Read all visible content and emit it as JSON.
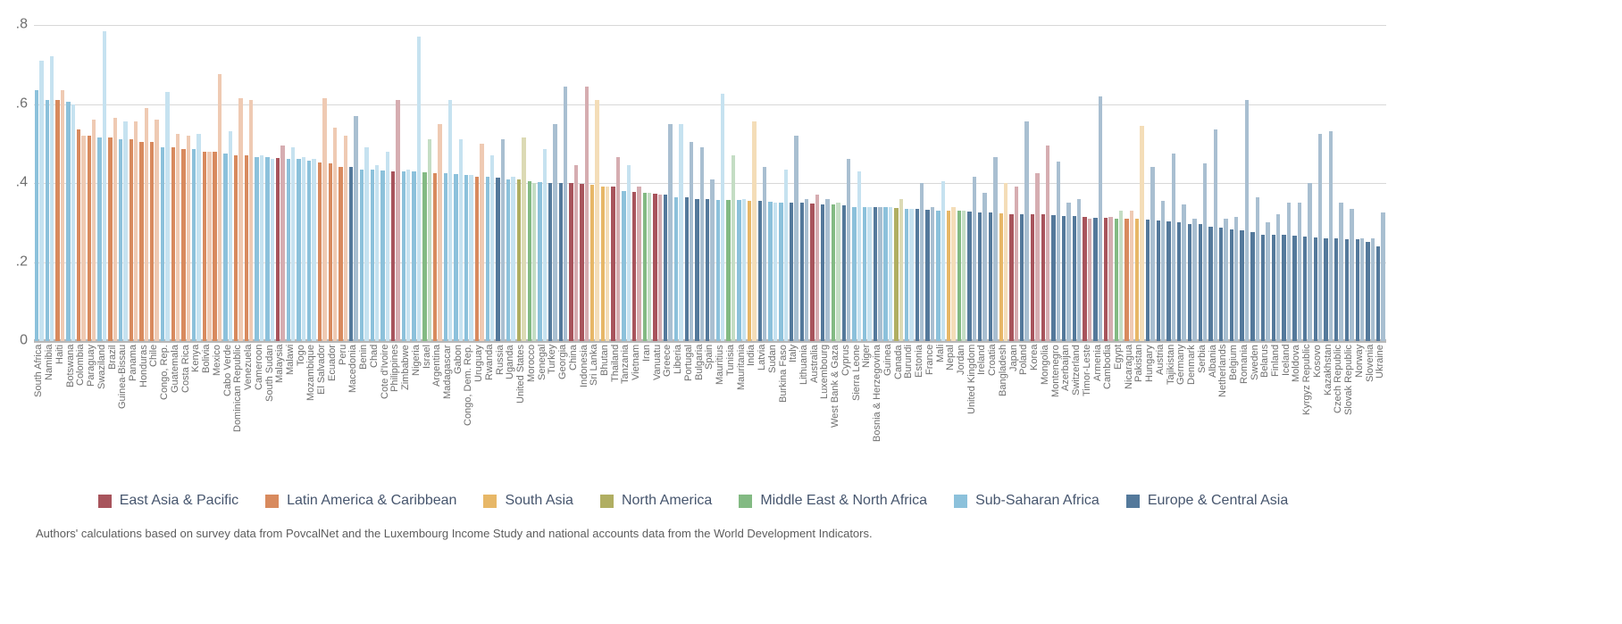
{
  "y_axis": {
    "ticks": [
      ".8",
      ".6",
      ".4",
      ".2",
      "0"
    ]
  },
  "caption": "Authors' calculations based on survey data from PovcalNet and the Luxembourg Income Study and national accounts data from the World Development Indicators.",
  "chart_data": {
    "type": "bar",
    "title": "",
    "xlabel": "",
    "ylabel": "",
    "ylim": [
      0,
      0.8
    ],
    "ytick_values": [
      0,
      0.2,
      0.4,
      0.6,
      0.8
    ],
    "grid": true,
    "legend_position": "bottom",
    "note": "Two bars per country: solid bar = survey-based estimate, light bar = national-accounts-based estimate, colored by world region.",
    "regions": [
      {
        "key": "EAP",
        "label": "East Asia & Pacific",
        "color": "#a8545c",
        "light": "#d6adb1"
      },
      {
        "key": "LAC",
        "label": "Latin America & Caribbean",
        "color": "#d88a5e",
        "light": "#efcab3"
      },
      {
        "key": "SAS",
        "label": "South Asia",
        "color": "#e7b767",
        "light": "#f4ddb8"
      },
      {
        "key": "NAM",
        "label": "North America",
        "color": "#b0ae62",
        "light": "#dcdab5"
      },
      {
        "key": "MNA",
        "label": "Middle East & North Africa",
        "color": "#83ba83",
        "light": "#c4ddc4"
      },
      {
        "key": "SSA",
        "label": "Sub-Saharan Africa",
        "color": "#8cc1db",
        "light": "#c6e2f0"
      },
      {
        "key": "ECA",
        "label": "Europe & Central Asia",
        "color": "#54799b",
        "light": "#a9bfd1"
      }
    ],
    "countries": [
      {
        "name": "South Africa",
        "region": "SSA",
        "survey": 0.635,
        "accounts": 0.71
      },
      {
        "name": "Namibia",
        "region": "SSA",
        "survey": 0.61,
        "accounts": 0.72
      },
      {
        "name": "Haiti",
        "region": "LAC",
        "survey": 0.61,
        "accounts": 0.635
      },
      {
        "name": "Botswana",
        "region": "SSA",
        "survey": 0.605,
        "accounts": 0.6
      },
      {
        "name": "Colombia",
        "region": "LAC",
        "survey": 0.535,
        "accounts": 0.52
      },
      {
        "name": "Paraguay",
        "region": "LAC",
        "survey": 0.52,
        "accounts": 0.56
      },
      {
        "name": "Swaziland",
        "region": "SSA",
        "survey": 0.515,
        "accounts": 0.785
      },
      {
        "name": "Brazil",
        "region": "LAC",
        "survey": 0.515,
        "accounts": 0.565
      },
      {
        "name": "Guinea-Bissau",
        "region": "SSA",
        "survey": 0.51,
        "accounts": 0.555
      },
      {
        "name": "Panama",
        "region": "LAC",
        "survey": 0.51,
        "accounts": 0.555
      },
      {
        "name": "Honduras",
        "region": "LAC",
        "survey": 0.505,
        "accounts": 0.59
      },
      {
        "name": "Chile",
        "region": "LAC",
        "survey": 0.505,
        "accounts": 0.56
      },
      {
        "name": "Congo, Rep.",
        "region": "SSA",
        "survey": 0.49,
        "accounts": 0.63
      },
      {
        "name": "Guatemala",
        "region": "LAC",
        "survey": 0.49,
        "accounts": 0.525
      },
      {
        "name": "Costa Rica",
        "region": "LAC",
        "survey": 0.485,
        "accounts": 0.52
      },
      {
        "name": "Kenya",
        "region": "SSA",
        "survey": 0.485,
        "accounts": 0.525
      },
      {
        "name": "Bolivia",
        "region": "LAC",
        "survey": 0.48,
        "accounts": 0.48
      },
      {
        "name": "Mexico",
        "region": "LAC",
        "survey": 0.48,
        "accounts": 0.675
      },
      {
        "name": "Cabo Verde",
        "region": "SSA",
        "survey": 0.475,
        "accounts": 0.53
      },
      {
        "name": "Dominican Republic",
        "region": "LAC",
        "survey": 0.47,
        "accounts": 0.615
      },
      {
        "name": "Venezuela",
        "region": "LAC",
        "survey": 0.47,
        "accounts": 0.61
      },
      {
        "name": "Cameroon",
        "region": "SSA",
        "survey": 0.465,
        "accounts": 0.47
      },
      {
        "name": "South Sudan",
        "region": "SSA",
        "survey": 0.465,
        "accounts": 0.46
      },
      {
        "name": "Malaysia",
        "region": "EAP",
        "survey": 0.463,
        "accounts": 0.495
      },
      {
        "name": "Malawi",
        "region": "SSA",
        "survey": 0.46,
        "accounts": 0.49
      },
      {
        "name": "Togo",
        "region": "SSA",
        "survey": 0.46,
        "accounts": 0.465
      },
      {
        "name": "Mozambique",
        "region": "SSA",
        "survey": 0.456,
        "accounts": 0.46
      },
      {
        "name": "El Salvador",
        "region": "LAC",
        "survey": 0.453,
        "accounts": 0.615
      },
      {
        "name": "Ecuador",
        "region": "LAC",
        "survey": 0.45,
        "accounts": 0.54
      },
      {
        "name": "Peru",
        "region": "LAC",
        "survey": 0.44,
        "accounts": 0.52
      },
      {
        "name": "Macedonia",
        "region": "ECA",
        "survey": 0.44,
        "accounts": 0.57
      },
      {
        "name": "Benin",
        "region": "SSA",
        "survey": 0.435,
        "accounts": 0.49
      },
      {
        "name": "Chad",
        "region": "SSA",
        "survey": 0.435,
        "accounts": 0.445
      },
      {
        "name": "Cote d'Ivoire",
        "region": "SSA",
        "survey": 0.432,
        "accounts": 0.48
      },
      {
        "name": "Philippines",
        "region": "EAP",
        "survey": 0.43,
        "accounts": 0.61
      },
      {
        "name": "Zimbabwe",
        "region": "SSA",
        "survey": 0.43,
        "accounts": 0.435
      },
      {
        "name": "Nigeria",
        "region": "SSA",
        "survey": 0.43,
        "accounts": 0.77
      },
      {
        "name": "Israel",
        "region": "MNA",
        "survey": 0.428,
        "accounts": 0.51
      },
      {
        "name": "Argentina",
        "region": "LAC",
        "survey": 0.425,
        "accounts": 0.55
      },
      {
        "name": "Madagascar",
        "region": "SSA",
        "survey": 0.425,
        "accounts": 0.61
      },
      {
        "name": "Gabon",
        "region": "SSA",
        "survey": 0.422,
        "accounts": 0.51
      },
      {
        "name": "Congo, Dem. Rep.",
        "region": "SSA",
        "survey": 0.42,
        "accounts": 0.42
      },
      {
        "name": "Uruguay",
        "region": "LAC",
        "survey": 0.416,
        "accounts": 0.5
      },
      {
        "name": "Rwanda",
        "region": "SSA",
        "survey": 0.415,
        "accounts": 0.47
      },
      {
        "name": "Russia",
        "region": "ECA",
        "survey": 0.413,
        "accounts": 0.51
      },
      {
        "name": "Uganda",
        "region": "SSA",
        "survey": 0.41,
        "accounts": 0.415
      },
      {
        "name": "United States",
        "region": "NAM",
        "survey": 0.41,
        "accounts": 0.515
      },
      {
        "name": "Morocco",
        "region": "MNA",
        "survey": 0.405,
        "accounts": 0.4
      },
      {
        "name": "Senegal",
        "region": "SSA",
        "survey": 0.403,
        "accounts": 0.485
      },
      {
        "name": "Turkey",
        "region": "ECA",
        "survey": 0.4,
        "accounts": 0.55
      },
      {
        "name": "Georgia",
        "region": "ECA",
        "survey": 0.4,
        "accounts": 0.645
      },
      {
        "name": "China",
        "region": "EAP",
        "survey": 0.4,
        "accounts": 0.445
      },
      {
        "name": "Indonesia",
        "region": "EAP",
        "survey": 0.397,
        "accounts": 0.645
      },
      {
        "name": "Sri Lanka",
        "region": "SAS",
        "survey": 0.395,
        "accounts": 0.61
      },
      {
        "name": "Bhutan",
        "region": "SAS",
        "survey": 0.39,
        "accounts": 0.39
      },
      {
        "name": "Thailand",
        "region": "EAP",
        "survey": 0.39,
        "accounts": 0.465
      },
      {
        "name": "Tanzania",
        "region": "SSA",
        "survey": 0.38,
        "accounts": 0.445
      },
      {
        "name": "Vietnam",
        "region": "EAP",
        "survey": 0.378,
        "accounts": 0.39
      },
      {
        "name": "Iran",
        "region": "MNA",
        "survey": 0.375,
        "accounts": 0.375
      },
      {
        "name": "Vanuatu",
        "region": "EAP",
        "survey": 0.374,
        "accounts": 0.37
      },
      {
        "name": "Greece",
        "region": "ECA",
        "survey": 0.37,
        "accounts": 0.55
      },
      {
        "name": "Liberia",
        "region": "SSA",
        "survey": 0.365,
        "accounts": 0.55
      },
      {
        "name": "Portugal",
        "region": "ECA",
        "survey": 0.363,
        "accounts": 0.505
      },
      {
        "name": "Bulgaria",
        "region": "ECA",
        "survey": 0.36,
        "accounts": 0.49
      },
      {
        "name": "Spain",
        "region": "ECA",
        "survey": 0.36,
        "accounts": 0.41
      },
      {
        "name": "Mauritius",
        "region": "SSA",
        "survey": 0.358,
        "accounts": 0.625
      },
      {
        "name": "Tunisia",
        "region": "MNA",
        "survey": 0.357,
        "accounts": 0.47
      },
      {
        "name": "Mauritania",
        "region": "SSA",
        "survey": 0.356,
        "accounts": 0.36
      },
      {
        "name": "India",
        "region": "SAS",
        "survey": 0.355,
        "accounts": 0.555
      },
      {
        "name": "Latvia",
        "region": "ECA",
        "survey": 0.355,
        "accounts": 0.44
      },
      {
        "name": "Sudan",
        "region": "SSA",
        "survey": 0.353,
        "accounts": 0.35
      },
      {
        "name": "Burkina Faso",
        "region": "SSA",
        "survey": 0.351,
        "accounts": 0.435
      },
      {
        "name": "Italy",
        "region": "ECA",
        "survey": 0.35,
        "accounts": 0.52
      },
      {
        "name": "Lithuania",
        "region": "ECA",
        "survey": 0.35,
        "accounts": 0.36
      },
      {
        "name": "Australia",
        "region": "EAP",
        "survey": 0.348,
        "accounts": 0.37
      },
      {
        "name": "Luxembourg",
        "region": "ECA",
        "survey": 0.345,
        "accounts": 0.36
      },
      {
        "name": "West Bank & Gaza",
        "region": "MNA",
        "survey": 0.345,
        "accounts": 0.35
      },
      {
        "name": "Cyprus",
        "region": "ECA",
        "survey": 0.343,
        "accounts": 0.46
      },
      {
        "name": "Sierra Leone",
        "region": "SSA",
        "survey": 0.34,
        "accounts": 0.43
      },
      {
        "name": "Niger",
        "region": "SSA",
        "survey": 0.34,
        "accounts": 0.34
      },
      {
        "name": "Bosnia & Herzegovina",
        "region": "ECA",
        "survey": 0.34,
        "accounts": 0.34
      },
      {
        "name": "Guinea",
        "region": "SSA",
        "survey": 0.338,
        "accounts": 0.34
      },
      {
        "name": "Canada",
        "region": "NAM",
        "survey": 0.337,
        "accounts": 0.36
      },
      {
        "name": "Burundi",
        "region": "SSA",
        "survey": 0.335,
        "accounts": 0.335
      },
      {
        "name": "Estonia",
        "region": "ECA",
        "survey": 0.335,
        "accounts": 0.4
      },
      {
        "name": "France",
        "region": "ECA",
        "survey": 0.333,
        "accounts": 0.34
      },
      {
        "name": "Mali",
        "region": "SSA",
        "survey": 0.33,
        "accounts": 0.405
      },
      {
        "name": "Nepal",
        "region": "SAS",
        "survey": 0.33,
        "accounts": 0.34
      },
      {
        "name": "Jordan",
        "region": "MNA",
        "survey": 0.33,
        "accounts": 0.33
      },
      {
        "name": "United Kingdom",
        "region": "ECA",
        "survey": 0.328,
        "accounts": 0.415
      },
      {
        "name": "Ireland",
        "region": "ECA",
        "survey": 0.325,
        "accounts": 0.375
      },
      {
        "name": "Croatia",
        "region": "ECA",
        "survey": 0.325,
        "accounts": 0.465
      },
      {
        "name": "Bangladesh",
        "region": "SAS",
        "survey": 0.323,
        "accounts": 0.4
      },
      {
        "name": "Japan",
        "region": "EAP",
        "survey": 0.32,
        "accounts": 0.39
      },
      {
        "name": "Poland",
        "region": "ECA",
        "survey": 0.32,
        "accounts": 0.555
      },
      {
        "name": "Korea",
        "region": "EAP",
        "survey": 0.32,
        "accounts": 0.425
      },
      {
        "name": "Mongolia",
        "region": "EAP",
        "survey": 0.32,
        "accounts": 0.495
      },
      {
        "name": "Montenegro",
        "region": "ECA",
        "survey": 0.318,
        "accounts": 0.455
      },
      {
        "name": "Azerbaijan",
        "region": "ECA",
        "survey": 0.317,
        "accounts": 0.35
      },
      {
        "name": "Switzerland",
        "region": "ECA",
        "survey": 0.316,
        "accounts": 0.36
      },
      {
        "name": "Timor-Leste",
        "region": "EAP",
        "survey": 0.315,
        "accounts": 0.31
      },
      {
        "name": "Armenia",
        "region": "ECA",
        "survey": 0.313,
        "accounts": 0.62
      },
      {
        "name": "Cambodia",
        "region": "EAP",
        "survey": 0.312,
        "accounts": 0.315
      },
      {
        "name": "Egypt",
        "region": "MNA",
        "survey": 0.31,
        "accounts": 0.33
      },
      {
        "name": "Nicaragua",
        "region": "LAC",
        "survey": 0.31,
        "accounts": 0.33
      },
      {
        "name": "Pakistan",
        "region": "SAS",
        "survey": 0.31,
        "accounts": 0.545
      },
      {
        "name": "Hungary",
        "region": "ECA",
        "survey": 0.308,
        "accounts": 0.44
      },
      {
        "name": "Austria",
        "region": "ECA",
        "survey": 0.305,
        "accounts": 0.355
      },
      {
        "name": "Tajikistan",
        "region": "ECA",
        "survey": 0.303,
        "accounts": 0.475
      },
      {
        "name": "Germany",
        "region": "ECA",
        "survey": 0.3,
        "accounts": 0.345
      },
      {
        "name": "Denmark",
        "region": "ECA",
        "survey": 0.297,
        "accounts": 0.31
      },
      {
        "name": "Serbia",
        "region": "ECA",
        "survey": 0.295,
        "accounts": 0.45
      },
      {
        "name": "Albania",
        "region": "ECA",
        "survey": 0.29,
        "accounts": 0.535
      },
      {
        "name": "Netherlands",
        "region": "ECA",
        "survey": 0.288,
        "accounts": 0.31
      },
      {
        "name": "Belgium",
        "region": "ECA",
        "survey": 0.283,
        "accounts": 0.315
      },
      {
        "name": "Romania",
        "region": "ECA",
        "survey": 0.28,
        "accounts": 0.61
      },
      {
        "name": "Sweden",
        "region": "ECA",
        "survey": 0.275,
        "accounts": 0.365
      },
      {
        "name": "Belarus",
        "region": "ECA",
        "survey": 0.27,
        "accounts": 0.3
      },
      {
        "name": "Finland",
        "region": "ECA",
        "survey": 0.27,
        "accounts": 0.32
      },
      {
        "name": "Iceland",
        "region": "ECA",
        "survey": 0.268,
        "accounts": 0.35
      },
      {
        "name": "Moldova",
        "region": "ECA",
        "survey": 0.267,
        "accounts": 0.35
      },
      {
        "name": "Kyrgyz Republic",
        "region": "ECA",
        "survey": 0.265,
        "accounts": 0.4
      },
      {
        "name": "Kosovo",
        "region": "ECA",
        "survey": 0.263,
        "accounts": 0.525
      },
      {
        "name": "Kazakhstan",
        "region": "ECA",
        "survey": 0.26,
        "accounts": 0.53
      },
      {
        "name": "Czech Republic",
        "region": "ECA",
        "survey": 0.26,
        "accounts": 0.35
      },
      {
        "name": "Slovak Republic",
        "region": "ECA",
        "survey": 0.258,
        "accounts": 0.335
      },
      {
        "name": "Norway",
        "region": "ECA",
        "survey": 0.257,
        "accounts": 0.26
      },
      {
        "name": "Slovenia",
        "region": "ECA",
        "survey": 0.25,
        "accounts": 0.26
      },
      {
        "name": "Ukraine",
        "region": "ECA",
        "survey": 0.24,
        "accounts": 0.325
      }
    ]
  }
}
